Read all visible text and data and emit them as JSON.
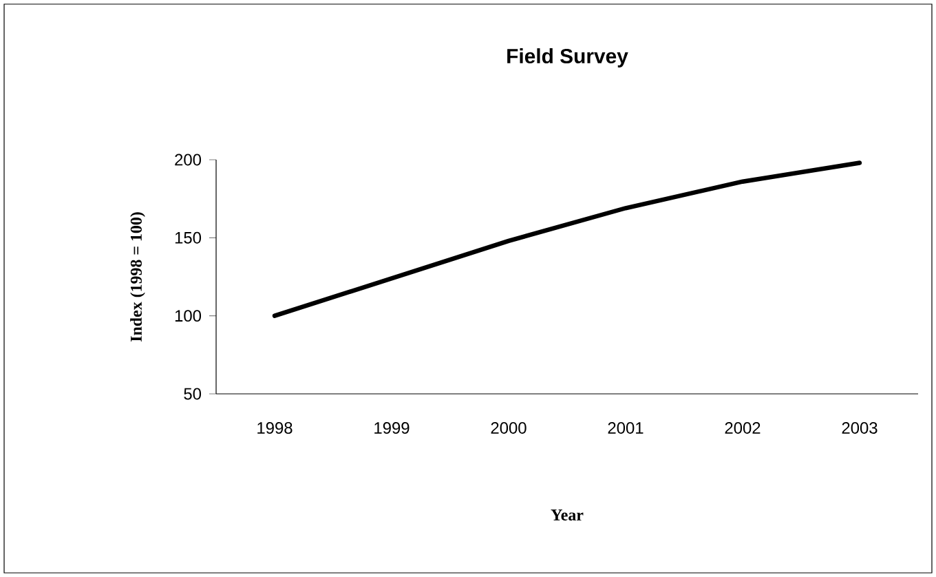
{
  "chart_data": {
    "type": "line",
    "title": "Field Survey",
    "xlabel": "Year",
    "ylabel": "Index (1998 = 100)",
    "categories": [
      "1998",
      "1999",
      "2000",
      "2001",
      "2002",
      "2003"
    ],
    "series": [
      {
        "color": "#000000",
        "values": [
          100,
          124,
          148,
          169,
          186,
          198
        ]
      }
    ],
    "ylim": [
      50,
      200
    ],
    "yticks": [
      50,
      100,
      150,
      200
    ],
    "grid": false,
    "marker": "none",
    "line_style": "solid"
  }
}
